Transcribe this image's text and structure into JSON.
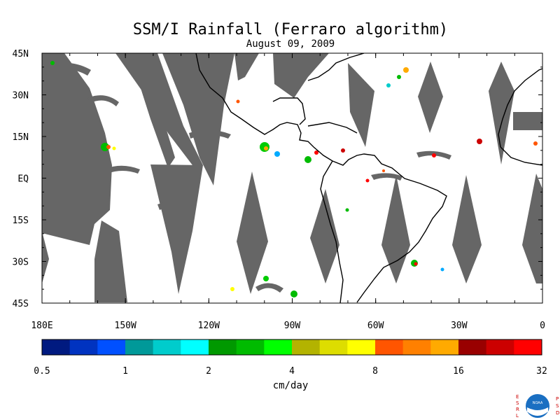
{
  "title": "SSM/I Rainfall (Ferraro algorithm)",
  "subtitle": "August 09, 2009",
  "map": {
    "lat_range": [
      -45,
      45
    ],
    "lon_range": [
      -180,
      0
    ],
    "lat_labels": [
      {
        "lat": 45,
        "text": "45N"
      },
      {
        "lat": 30,
        "text": "30N"
      },
      {
        "lat": 15,
        "text": "15N"
      },
      {
        "lat": 0,
        "text": "EQ"
      },
      {
        "lat": -15,
        "text": "15S"
      },
      {
        "lat": -30,
        "text": "30S"
      },
      {
        "lat": -45,
        "text": "45S"
      }
    ],
    "lon_labels": [
      {
        "lon": -180,
        "text": "180E"
      },
      {
        "lon": -150,
        "text": "150W"
      },
      {
        "lon": -120,
        "text": "120W"
      },
      {
        "lon": -90,
        "text": "90W"
      },
      {
        "lon": -60,
        "text": "60W"
      },
      {
        "lon": -30,
        "text": "30W"
      },
      {
        "lon": 0,
        "text": "0"
      }
    ],
    "colors": {
      "no_data": "#666666",
      "coast": "#000000",
      "background": "#ffffff"
    }
  },
  "colorbar": {
    "unit": "cm/day",
    "tick_labels": [
      "0.5",
      "1",
      "2",
      "4",
      "8",
      "16",
      "32"
    ],
    "colors": [
      "#001a80",
      "#0033c0",
      "#0050ff",
      "#009999",
      "#00cccc",
      "#00ffff",
      "#009900",
      "#00bb00",
      "#00ff00",
      "#b3b300",
      "#dddd00",
      "#ffff00",
      "#ff5500",
      "#ff8000",
      "#ffaa00",
      "#990000",
      "#cc0000",
      "#ff0000"
    ]
  },
  "logo": {
    "letters_left": "ESRL",
    "letters_right": "PSD",
    "name": "NOAA"
  }
}
